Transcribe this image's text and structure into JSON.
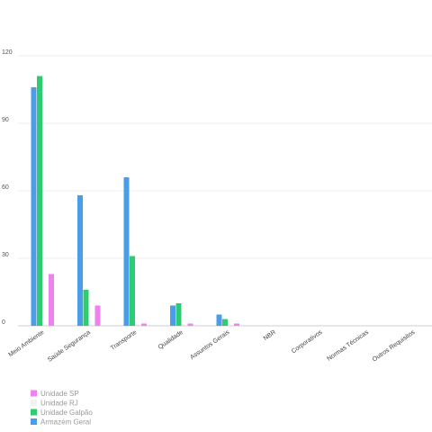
{
  "chart_data": {
    "type": "bar",
    "categories": [
      "Meio Ambiente",
      "Saúde Segurança",
      "Transporte",
      "Qualidade",
      "Assuntos Gerais",
      "NBR",
      "Corporativos",
      "Normas Técnicas",
      "Outros Requisitos"
    ],
    "series": [
      {
        "name": "Armazém Geral",
        "color": "#4a9ee8",
        "values": [
          106,
          58,
          66,
          9,
          5,
          0,
          0,
          0,
          0
        ]
      },
      {
        "name": "Unidade Galpão",
        "color": "#2ecc71",
        "values": [
          111,
          16,
          31,
          10,
          3,
          0,
          0,
          0,
          0
        ]
      },
      {
        "name": "Unidade RJ",
        "color": "#f2f2f2",
        "values": [
          0,
          0,
          0,
          0,
          0,
          0,
          0,
          0,
          0
        ]
      },
      {
        "name": "Unidade SP",
        "color": "#ee82ee",
        "values": [
          23,
          9,
          1,
          1,
          1,
          0,
          0,
          0,
          0
        ]
      }
    ],
    "legend_order": [
      "Unidade SP",
      "Unidade RJ",
      "Unidade Galpão",
      "Armazém Geral"
    ],
    "yticks": [
      0,
      30,
      60,
      90,
      120
    ],
    "ylim": [
      0,
      120
    ],
    "grid": true,
    "legend_position": "bottom-left"
  }
}
